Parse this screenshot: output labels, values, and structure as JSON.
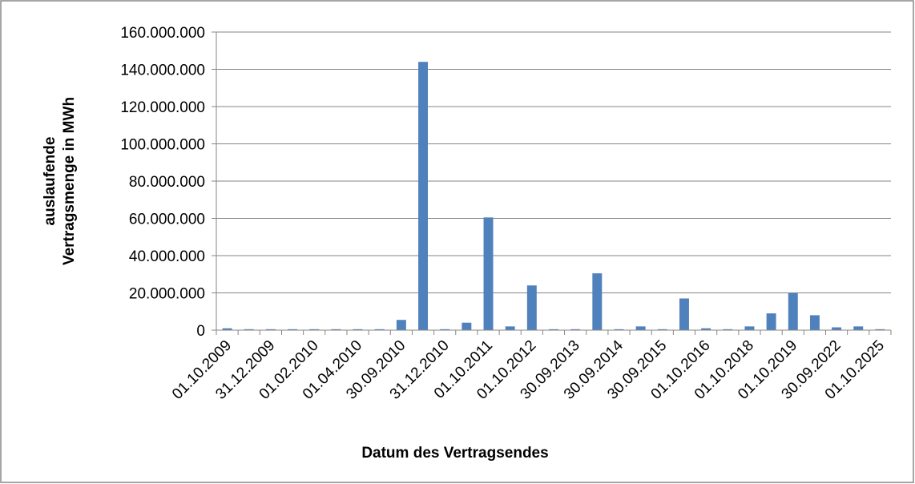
{
  "chart_data": {
    "type": "bar",
    "ylabel": [
      "auslaufende",
      "Vertragsmenge in MWh"
    ],
    "xlabel": "Datum des Vertragsendes",
    "color": "#4f81bd",
    "grid": true,
    "categories": [
      "01.10.2009",
      null,
      "31.12.2009",
      null,
      "01.02.2010",
      null,
      "01.04.2010",
      null,
      "30.09.2010",
      null,
      "31.12.2010",
      null,
      "01.10.2011",
      null,
      "01.10.2012",
      null,
      "30.09.2013",
      null,
      "30.09.2014",
      null,
      "30.09.2015",
      null,
      "01.10.2016",
      null,
      "01.10.2018",
      null,
      "01.10.2019",
      null,
      "30.09.2022",
      null,
      "01.10.2025"
    ],
    "values": [
      1000000,
      500000,
      500000,
      500000,
      500000,
      500000,
      500000,
      500000,
      5500000,
      144000000,
      500000,
      4000000,
      60500000,
      2000000,
      24000000,
      500000,
      500000,
      30500000,
      500000,
      2000000,
      500000,
      17000000,
      1000000,
      500000,
      2000000,
      9000000,
      20000000,
      8000000,
      1500000,
      2000000,
      500000
    ],
    "ylim": [
      0,
      160000000
    ],
    "yticks": [
      0,
      {
        "value": 20000000,
        "label": "20.000.000"
      },
      {
        "value": 40000000,
        "label": "40.000.000"
      },
      {
        "value": 60000000,
        "label": "60.000.000"
      },
      {
        "value": 80000000,
        "label": "80.000.000"
      },
      {
        "value": 100000000,
        "label": "100.000.000"
      },
      {
        "value": 120000000,
        "label": "120.000.000"
      },
      {
        "value": 140000000,
        "label": "140.000.000"
      },
      {
        "value": 160000000,
        "label": "160.000.000"
      }
    ]
  }
}
